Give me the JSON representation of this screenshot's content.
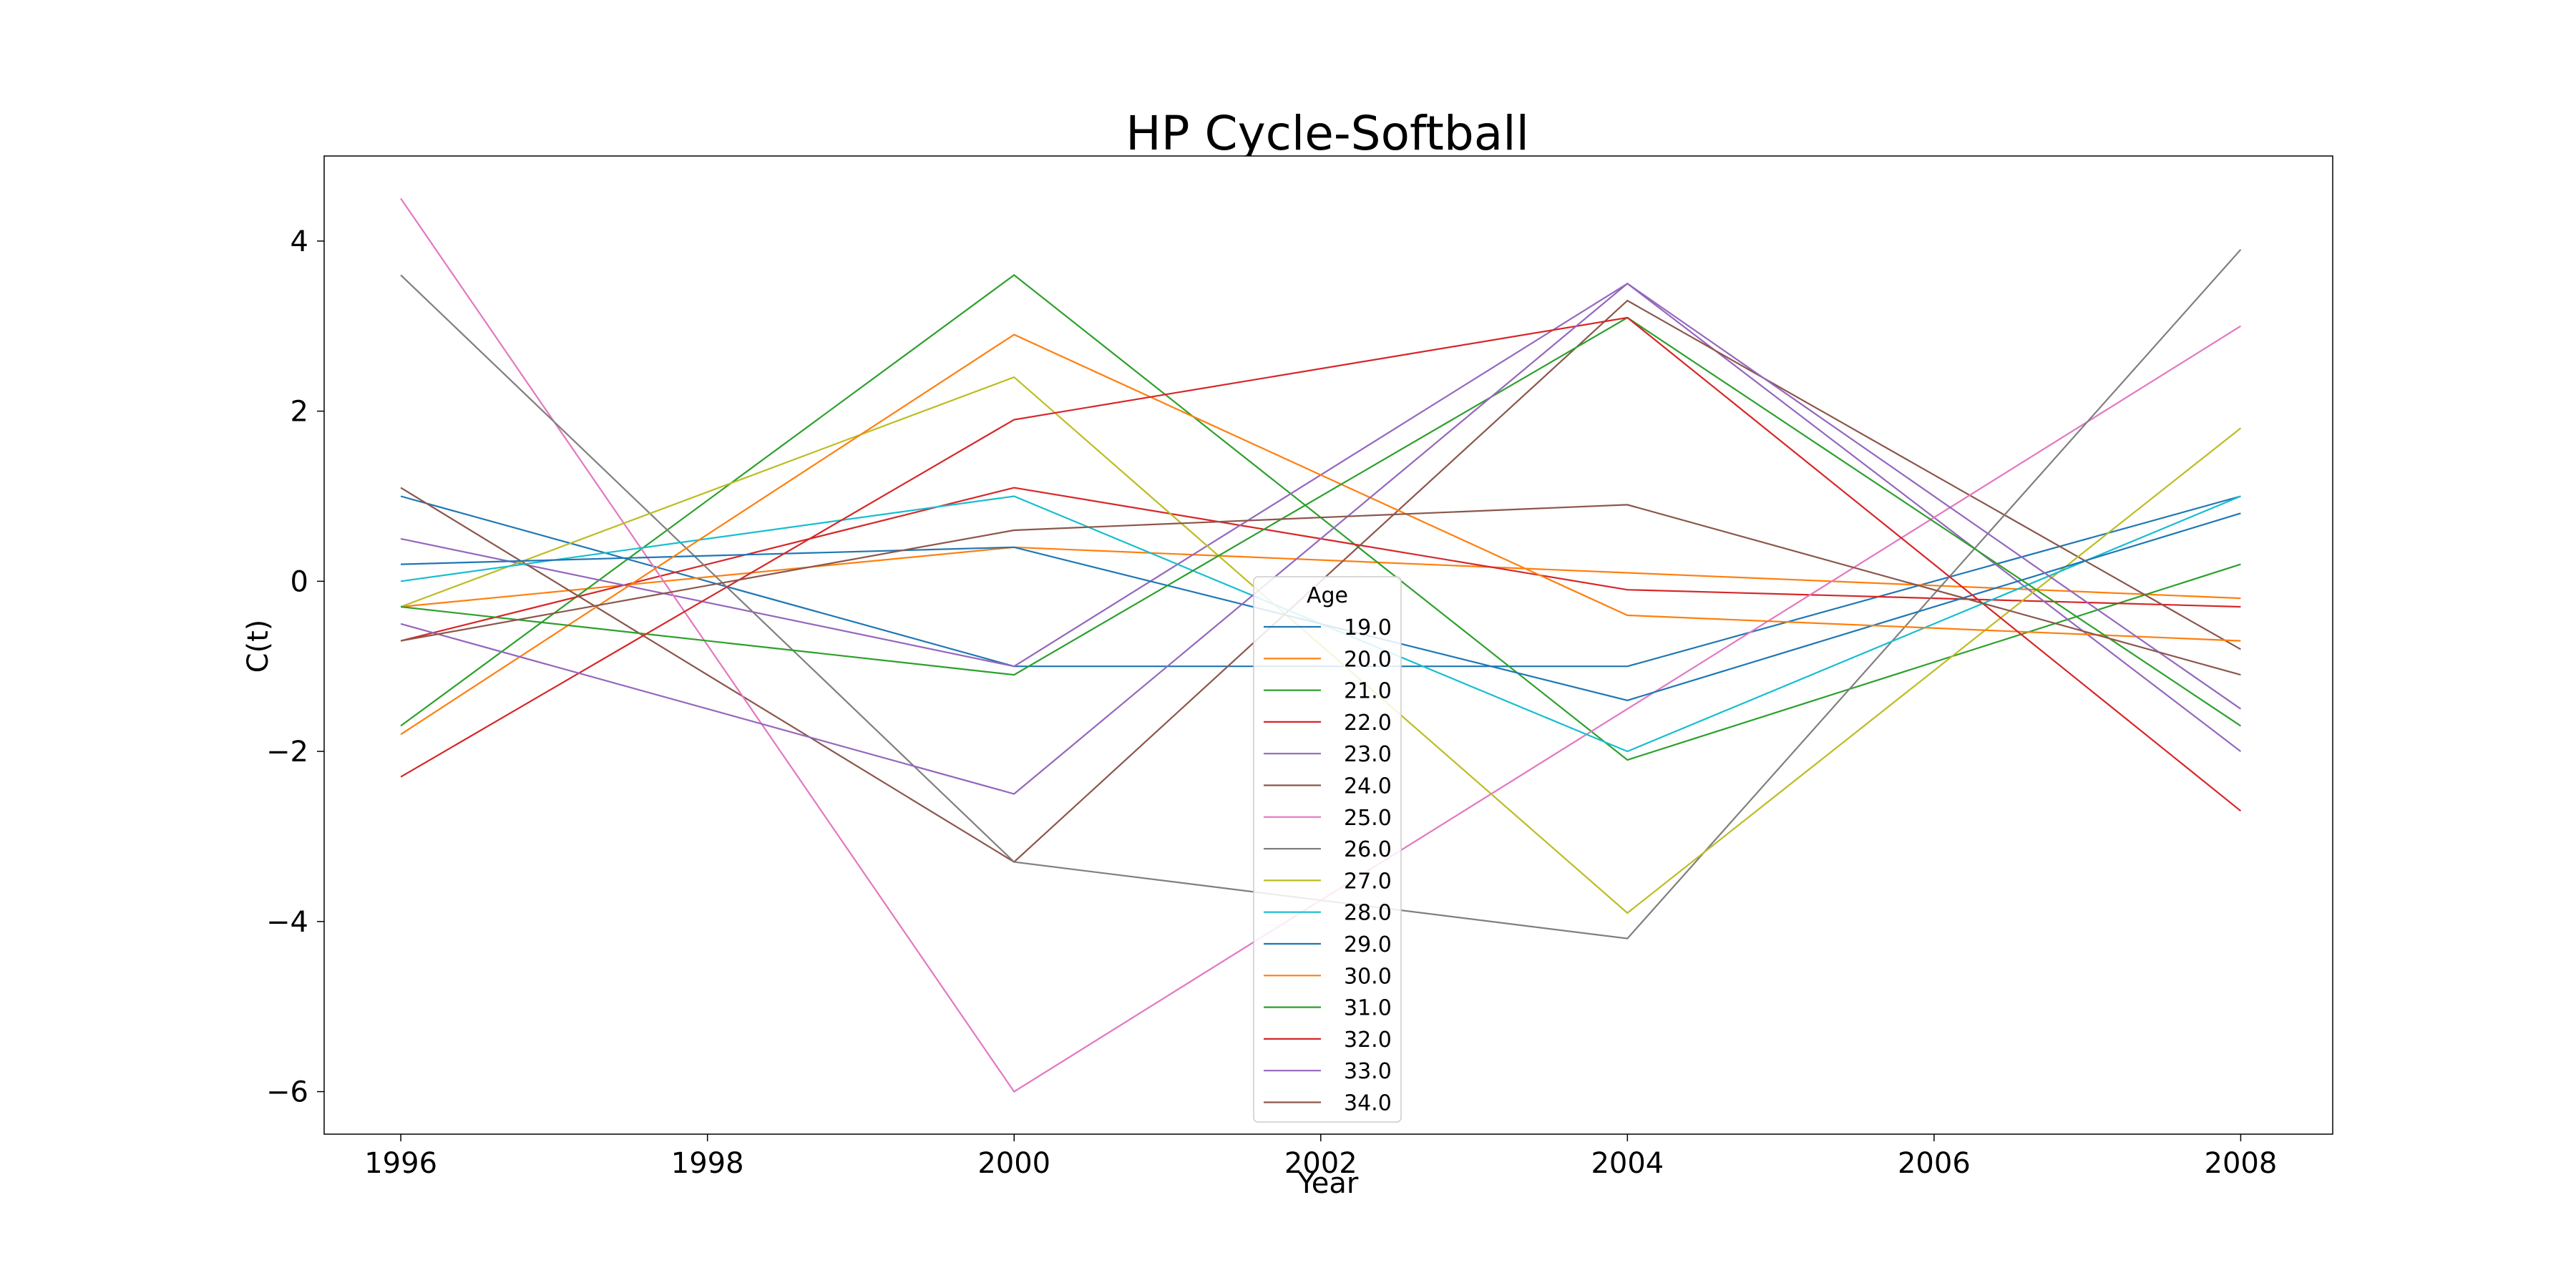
{
  "chart_data": {
    "type": "line",
    "title": "HP Cycle-Softball",
    "xlabel": "Year",
    "ylabel": "C(t)",
    "x": [
      1996,
      2000,
      2004,
      2008
    ],
    "xlim": [
      1995.5,
      2008.6
    ],
    "ylim": [
      -6.5,
      5.0
    ],
    "x_ticks": [
      1996,
      1998,
      2000,
      2002,
      2004,
      2006,
      2008
    ],
    "y_ticks": [
      -6,
      -4,
      -2,
      0,
      2,
      4
    ],
    "y_tick_labels": [
      "−6",
      "−4",
      "−2",
      "0",
      "2",
      "4"
    ],
    "grid": false,
    "legend": {
      "title": "Age",
      "placement": "bottom-center"
    },
    "series": [
      {
        "name": "19.0",
        "color": "#1f77b4",
        "values": [
          1.0,
          -1.0,
          -1.0,
          1.0
        ]
      },
      {
        "name": "20.0",
        "color": "#ff7f0e",
        "values": [
          -0.3,
          0.4,
          0.1,
          -0.2
        ]
      },
      {
        "name": "21.0",
        "color": "#2ca02c",
        "values": [
          -1.7,
          3.6,
          -2.1,
          0.2
        ]
      },
      {
        "name": "22.0",
        "color": "#d62728",
        "values": [
          -0.7,
          1.1,
          -0.1,
          -0.3
        ]
      },
      {
        "name": "23.0",
        "color": "#9467bd",
        "values": [
          0.5,
          -1.0,
          3.5,
          -2.0
        ]
      },
      {
        "name": "24.0",
        "color": "#8c564b",
        "values": [
          1.1,
          -3.3,
          3.3,
          -0.8
        ]
      },
      {
        "name": "25.0",
        "color": "#e377c2",
        "values": [
          4.5,
          -6.0,
          -1.5,
          3.0
        ]
      },
      {
        "name": "26.0",
        "color": "#7f7f7f",
        "values": [
          3.6,
          -3.3,
          -4.2,
          3.9
        ]
      },
      {
        "name": "27.0",
        "color": "#bcbd22",
        "values": [
          -0.3,
          2.4,
          -3.9,
          1.8
        ]
      },
      {
        "name": "28.0",
        "color": "#17becf",
        "values": [
          0.0,
          1.0,
          -2.0,
          1.0
        ]
      },
      {
        "name": "29.0",
        "color": "#1f77b4",
        "values": [
          0.2,
          0.4,
          -1.4,
          0.8
        ]
      },
      {
        "name": "30.0",
        "color": "#ff7f0e",
        "values": [
          -1.8,
          2.9,
          -0.4,
          -0.7
        ]
      },
      {
        "name": "31.0",
        "color": "#2ca02c",
        "values": [
          -0.3,
          -1.1,
          3.1,
          -1.7
        ]
      },
      {
        "name": "32.0",
        "color": "#d62728",
        "values": [
          -2.3,
          1.9,
          3.1,
          -2.7
        ]
      },
      {
        "name": "33.0",
        "color": "#9467bd",
        "values": [
          -0.5,
          -2.5,
          3.5,
          -1.5
        ]
      },
      {
        "name": "34.0",
        "color": "#8c564b",
        "values": [
          -0.7,
          0.6,
          0.9,
          -1.1
        ]
      }
    ]
  }
}
